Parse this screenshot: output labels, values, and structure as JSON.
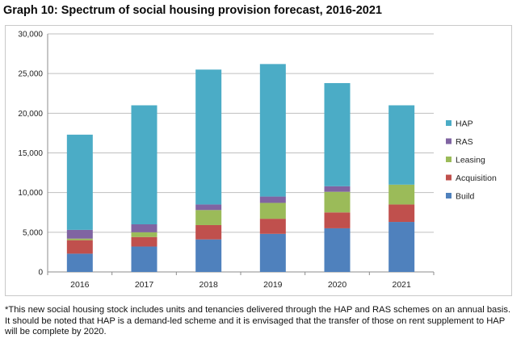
{
  "title": "Graph 10: Spectrum of social housing provision forecast, 2016-2021",
  "footnote": "*This new social housing stock includes units and tenancies delivered through the HAP and RAS schemes on an annual basis. It should be noted that HAP is a demand-led scheme and it is envisaged that the transfer of those on rent supplement to HAP will be complete by 2020.",
  "chart_data": {
    "type": "bar",
    "stacked": true,
    "title": "Graph 10: Spectrum of social housing provision forecast, 2016-2021",
    "xlabel": "",
    "ylabel": "",
    "categories": [
      "2016",
      "2017",
      "2018",
      "2019",
      "2020",
      "2021"
    ],
    "ylim": [
      0,
      30000
    ],
    "yticks": [
      0,
      5000,
      10000,
      15000,
      20000,
      25000,
      30000
    ],
    "ytick_labels": [
      "0",
      "5,000",
      "10,000",
      "15,000",
      "20,000",
      "25,000",
      "30,000"
    ],
    "grid": true,
    "legend_position": "right",
    "series": [
      {
        "name": "Build",
        "color": "#4f81bd",
        "values": [
          2300,
          3200,
          4100,
          4800,
          5500,
          6300
        ]
      },
      {
        "name": "Acquisition",
        "color": "#c0504d",
        "values": [
          1700,
          1200,
          1800,
          1900,
          2000,
          2200
        ]
      },
      {
        "name": "Leasing",
        "color": "#9bbb59",
        "values": [
          200,
          600,
          1900,
          2000,
          2600,
          2500
        ]
      },
      {
        "name": "RAS",
        "color": "#8064a2",
        "values": [
          1100,
          1000,
          700,
          800,
          700,
          0
        ]
      },
      {
        "name": "HAP",
        "color": "#4bacc6",
        "values": [
          12000,
          15000,
          17000,
          16700,
          13000,
          10000
        ]
      }
    ]
  }
}
